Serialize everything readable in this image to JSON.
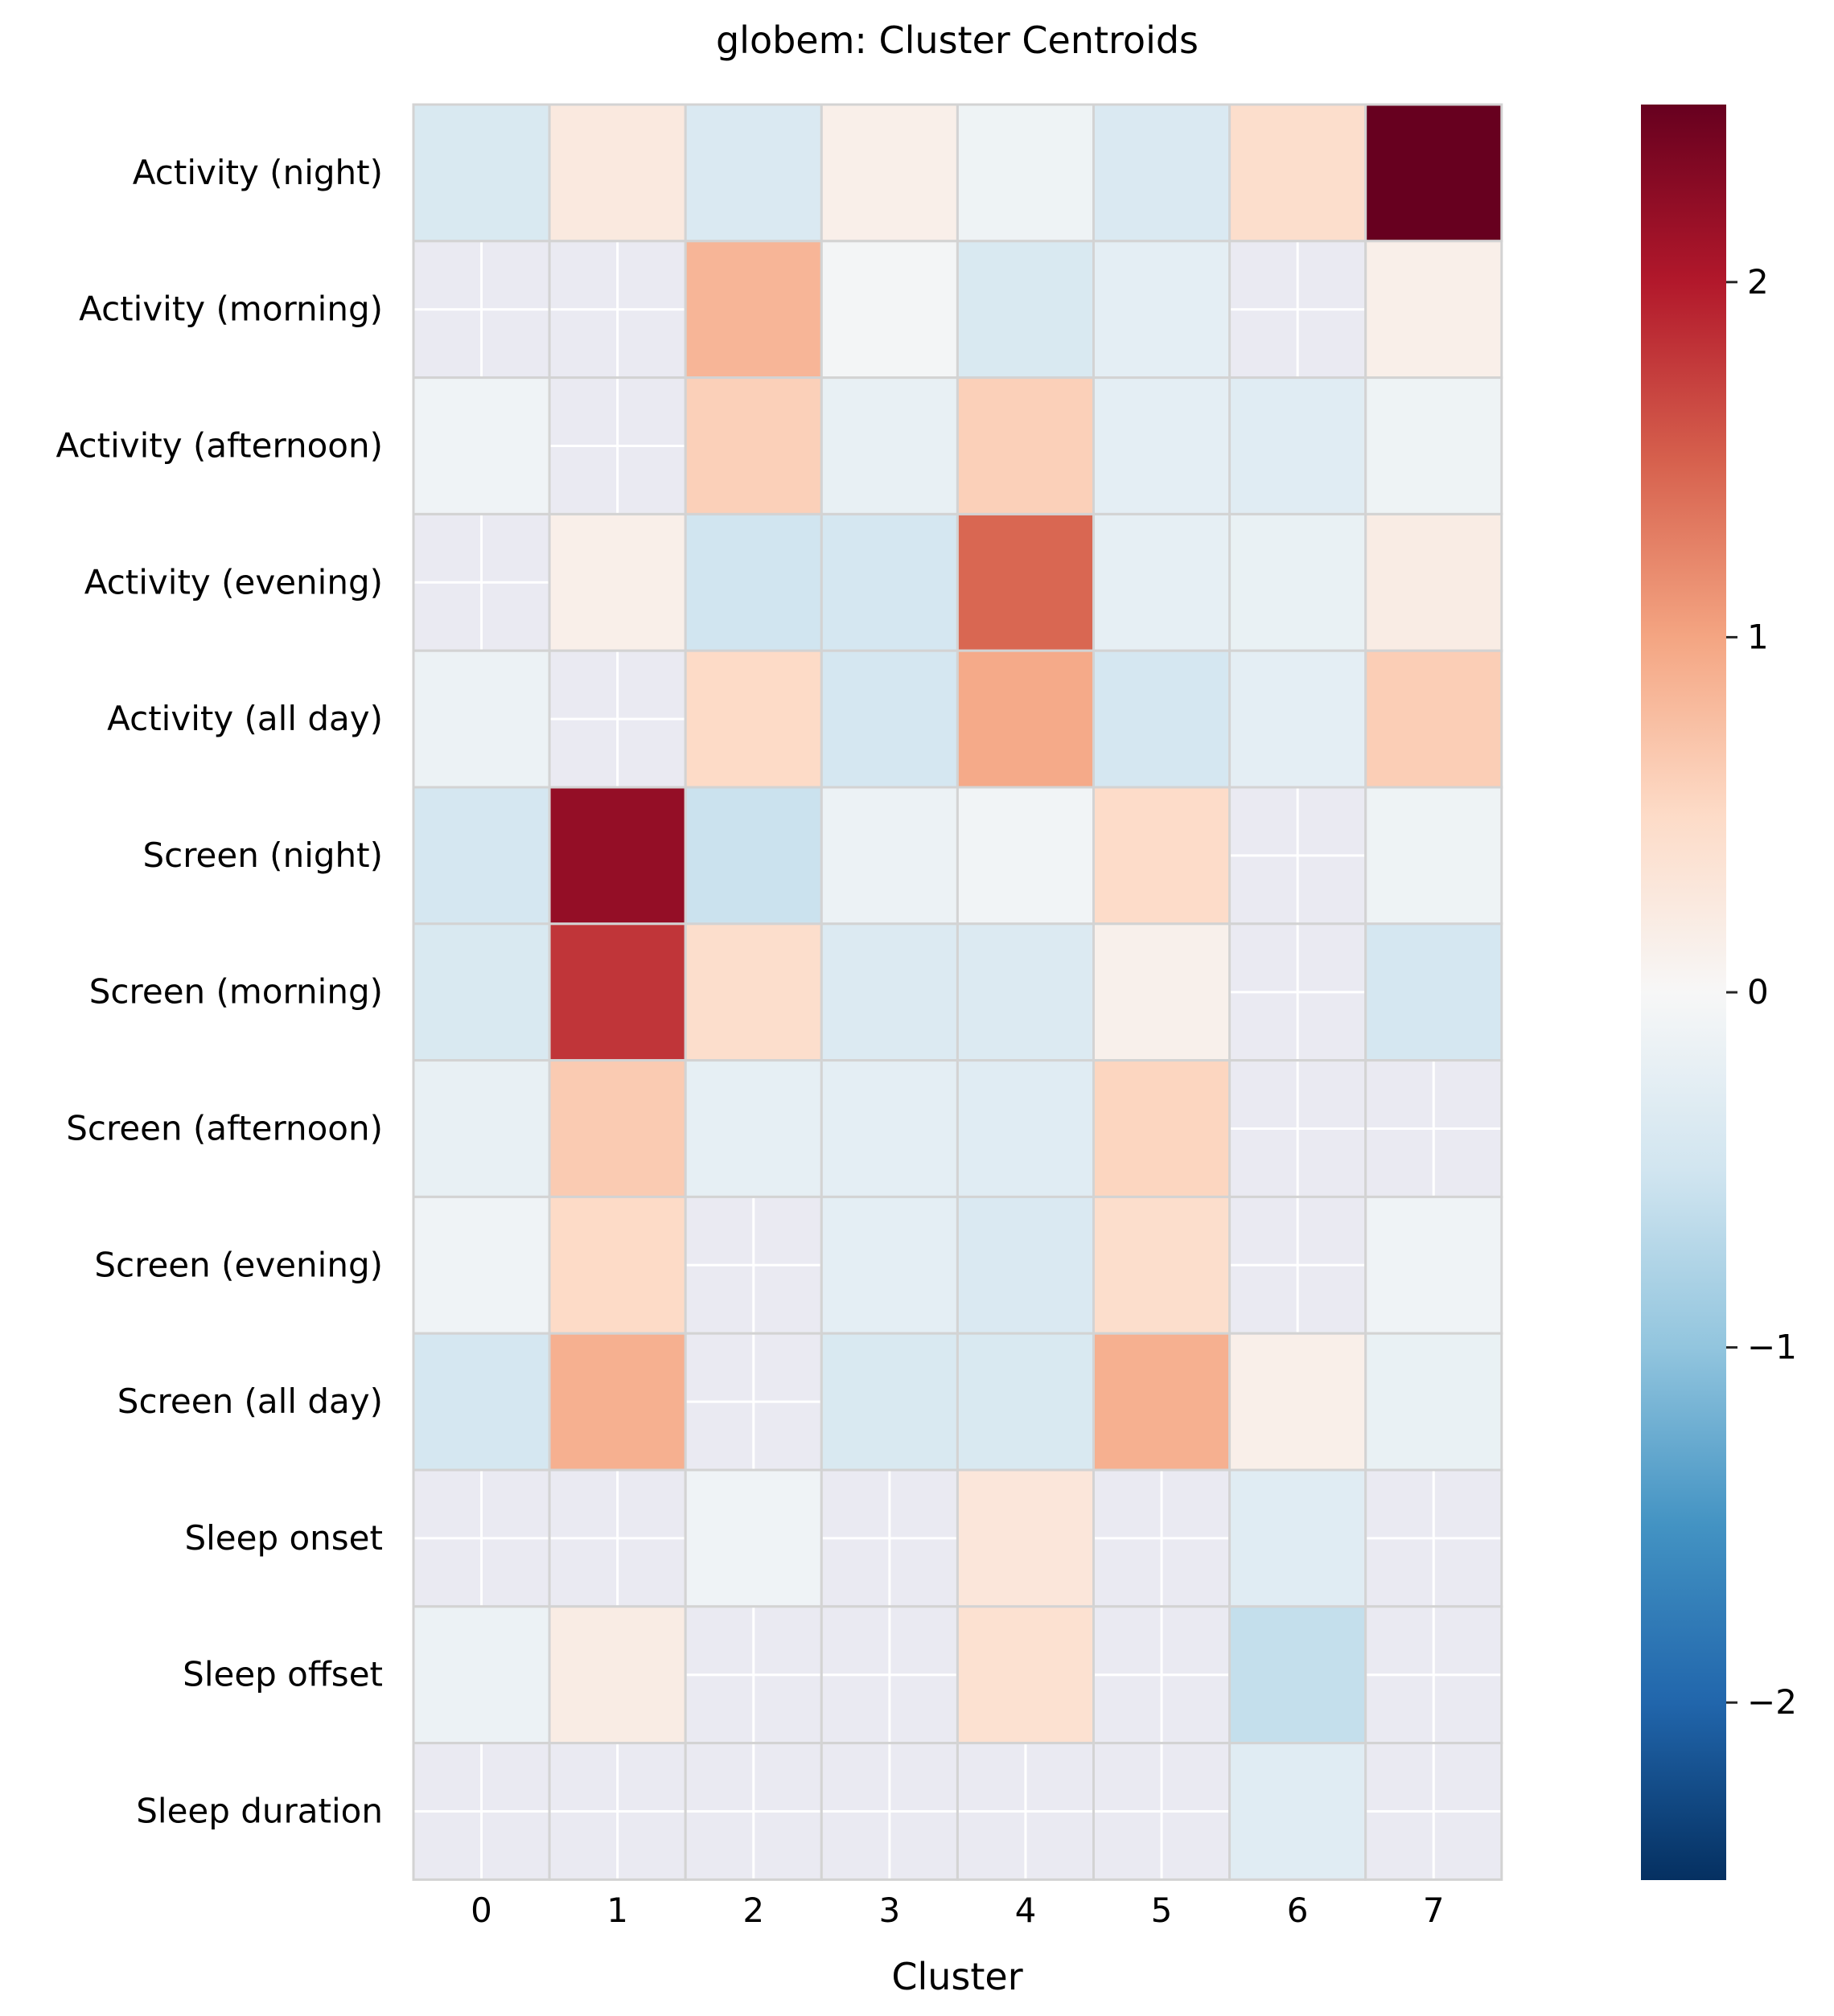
{
  "chart_data": {
    "type": "heatmap",
    "title": "globem: Cluster Centroids",
    "xlabel": "Cluster",
    "ylabel": "",
    "x_categories": [
      "0",
      "1",
      "2",
      "3",
      "4",
      "5",
      "6",
      "7"
    ],
    "y_categories": [
      "Activity (night)",
      "Activity (morning)",
      "Activity (afternoon)",
      "Activity (evening)",
      "Activity (all day)",
      "Screen (night)",
      "Screen (morning)",
      "Screen (afternoon)",
      "Screen (evening)",
      "Screen (all day)",
      "Sleep onset",
      "Sleep offset",
      "Sleep duration"
    ],
    "values": [
      [
        -0.4,
        0.25,
        -0.38,
        0.15,
        -0.12,
        -0.38,
        0.45,
        2.5
      ],
      [
        null,
        null,
        0.85,
        -0.05,
        -0.4,
        -0.25,
        null,
        0.15
      ],
      [
        -0.1,
        null,
        0.6,
        -0.2,
        0.6,
        -0.25,
        -0.3,
        -0.12
      ],
      [
        null,
        0.15,
        -0.5,
        -0.45,
        1.45,
        -0.22,
        -0.18,
        0.2
      ],
      [
        -0.15,
        null,
        0.5,
        -0.45,
        0.95,
        -0.45,
        -0.25,
        0.62
      ],
      [
        -0.45,
        2.2,
        -0.55,
        -0.15,
        -0.08,
        0.48,
        null,
        -0.12
      ],
      [
        -0.4,
        1.8,
        0.45,
        -0.35,
        -0.35,
        0.12,
        null,
        -0.45
      ],
      [
        -0.2,
        0.65,
        -0.22,
        -0.25,
        -0.3,
        0.55,
        null,
        null
      ],
      [
        -0.1,
        0.5,
        null,
        -0.25,
        -0.38,
        0.45,
        null,
        -0.1
      ],
      [
        -0.45,
        0.9,
        null,
        -0.4,
        -0.4,
        0.9,
        0.15,
        -0.18
      ],
      [
        null,
        null,
        -0.1,
        null,
        0.3,
        null,
        -0.3,
        null
      ],
      [
        -0.15,
        0.2,
        null,
        null,
        0.4,
        null,
        -0.6,
        null
      ],
      [
        null,
        null,
        null,
        null,
        null,
        null,
        -0.3,
        null
      ]
    ],
    "missing_value_note": "",
    "colormap": "RdBu_r",
    "color_range": [
      -2.5,
      2.5
    ],
    "colorbar_ticks": [
      2,
      1,
      0,
      -1,
      -2
    ],
    "colorbar_tick_labels": [
      "2",
      "1",
      "0",
      "−1",
      "−2"
    ],
    "missing_color": "#eaeaf2",
    "grid_color": "#ffffff",
    "cell_border_color": "#d3d3d3"
  }
}
